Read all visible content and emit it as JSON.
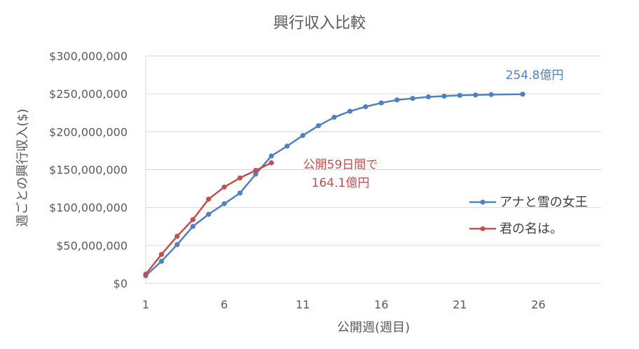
{
  "chart_data": {
    "type": "line",
    "title": "興行収入比較",
    "xlabel": "公開週(週目)",
    "ylabel": "週ごとの興行収入($)",
    "xlim": [
      1,
      30
    ],
    "ylim": [
      0,
      300000000
    ],
    "x_ticks": [
      1,
      6,
      11,
      16,
      21,
      26
    ],
    "y_ticks": [
      0,
      50000000,
      100000000,
      150000000,
      200000000,
      250000000,
      300000000
    ],
    "y_tick_labels": [
      "$0",
      "$50,000,000",
      "$100,000,000",
      "$150,000,000",
      "$200,000,000",
      "$250,000,000",
      "$300,000,000"
    ],
    "grid": "horizontal",
    "legend_position": "right",
    "series": [
      {
        "name": "アナと雪の女王",
        "color": "#4f81bd",
        "x": [
          1,
          2,
          3,
          4,
          5,
          6,
          7,
          8,
          9,
          10,
          11,
          12,
          13,
          14,
          15,
          16,
          17,
          18,
          19,
          20,
          21,
          22,
          23,
          25
        ],
        "values": [
          10000000,
          29000000,
          51000000,
          75000000,
          91000000,
          105000000,
          119000000,
          144000000,
          168000000,
          181000000,
          195000000,
          208000000,
          219000000,
          227000000,
          233000000,
          238000000,
          242000000,
          244000000,
          246000000,
          247000000,
          248000000,
          248500000,
          249000000,
          249500000
        ]
      },
      {
        "name": "君の名は。",
        "color": "#c0504d",
        "x": [
          1,
          2,
          3,
          4,
          5,
          6,
          7,
          8,
          9
        ],
        "values": [
          12000000,
          38000000,
          62000000,
          84000000,
          111000000,
          127000000,
          139000000,
          149000000,
          159000000
        ]
      }
    ],
    "annotations": [
      {
        "text": "254.8億円",
        "color": "#4f81bd"
      },
      {
        "text": "公開59日間で",
        "color": "#c0504d"
      },
      {
        "text": "164.1億円",
        "color": "#c0504d"
      }
    ]
  }
}
